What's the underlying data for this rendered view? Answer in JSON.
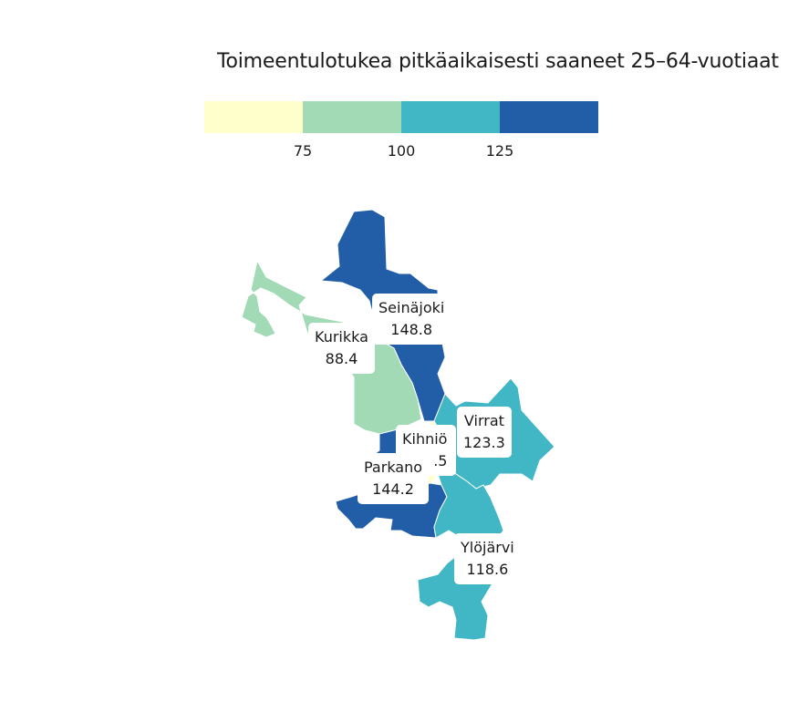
{
  "title": "Toimeentulotukea pitkäaikaisesti saaneet 25–64-vuotiaat",
  "legend": {
    "colors": [
      "#ffffcc",
      "#a1dab4",
      "#41b6c4",
      "#225ea8"
    ],
    "breaks": [
      "75",
      "100",
      "125"
    ]
  },
  "regions": [
    {
      "id": "seinajoki",
      "name": "Seinäjoki",
      "value": "148.8",
      "color": "#225ea8"
    },
    {
      "id": "kurikka",
      "name": "Kurikka",
      "value": "88.4",
      "color": "#a1dab4"
    },
    {
      "id": "kihnio",
      "name": "Kihniö",
      "value": ".5",
      "color": "#ffffcc"
    },
    {
      "id": "virrat",
      "name": "Virrat",
      "value": "123.3",
      "color": "#41b6c4"
    },
    {
      "id": "parkano",
      "name": "Parkano",
      "value": "144.2",
      "color": "#225ea8"
    },
    {
      "id": "ylojarvi",
      "name": "Ylöjärvi",
      "value": "118.6",
      "color": "#41b6c4"
    }
  ]
}
